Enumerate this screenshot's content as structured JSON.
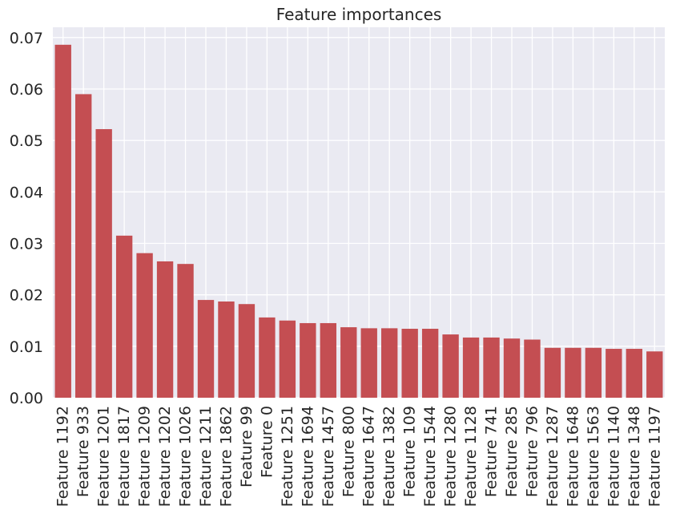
{
  "chart_data": {
    "type": "bar",
    "title": "Feature importances",
    "xlabel": "",
    "ylabel": "",
    "categories": [
      "Feature 1192",
      "Feature 933",
      "Feature 1201",
      "Feature 1817",
      "Feature 1209",
      "Feature 1202",
      "Feature 1026",
      "Feature 1211",
      "Feature 1862",
      "Feature 99",
      "Feature 0",
      "Feature 1251",
      "Feature 1694",
      "Feature 1457",
      "Feature 800",
      "Feature 1647",
      "Feature 1382",
      "Feature 109",
      "Feature 1544",
      "Feature 1280",
      "Feature 1128",
      "Feature 741",
      "Feature 285",
      "Feature 796",
      "Feature 1287",
      "Feature 1648",
      "Feature 1563",
      "Feature 1140",
      "Feature 1348",
      "Feature 1197"
    ],
    "values": [
      0.0686,
      0.059,
      0.0522,
      0.0315,
      0.0281,
      0.0265,
      0.026,
      0.019,
      0.0187,
      0.0182,
      0.0156,
      0.015,
      0.0145,
      0.0145,
      0.0137,
      0.0135,
      0.0135,
      0.0134,
      0.0134,
      0.0123,
      0.0117,
      0.0117,
      0.0115,
      0.0113,
      0.0097,
      0.0097,
      0.0097,
      0.0095,
      0.0095,
      0.009
    ],
    "ylim": [
      0,
      0.072
    ],
    "yticks": [
      "0.00",
      "0.01",
      "0.02",
      "0.03",
      "0.04",
      "0.05",
      "0.06",
      "0.07"
    ],
    "grid": true,
    "colors": {
      "bar": "#c44e52",
      "plot_background": "#eaeaf2",
      "grid": "#ffffff",
      "text": "#262626"
    }
  }
}
